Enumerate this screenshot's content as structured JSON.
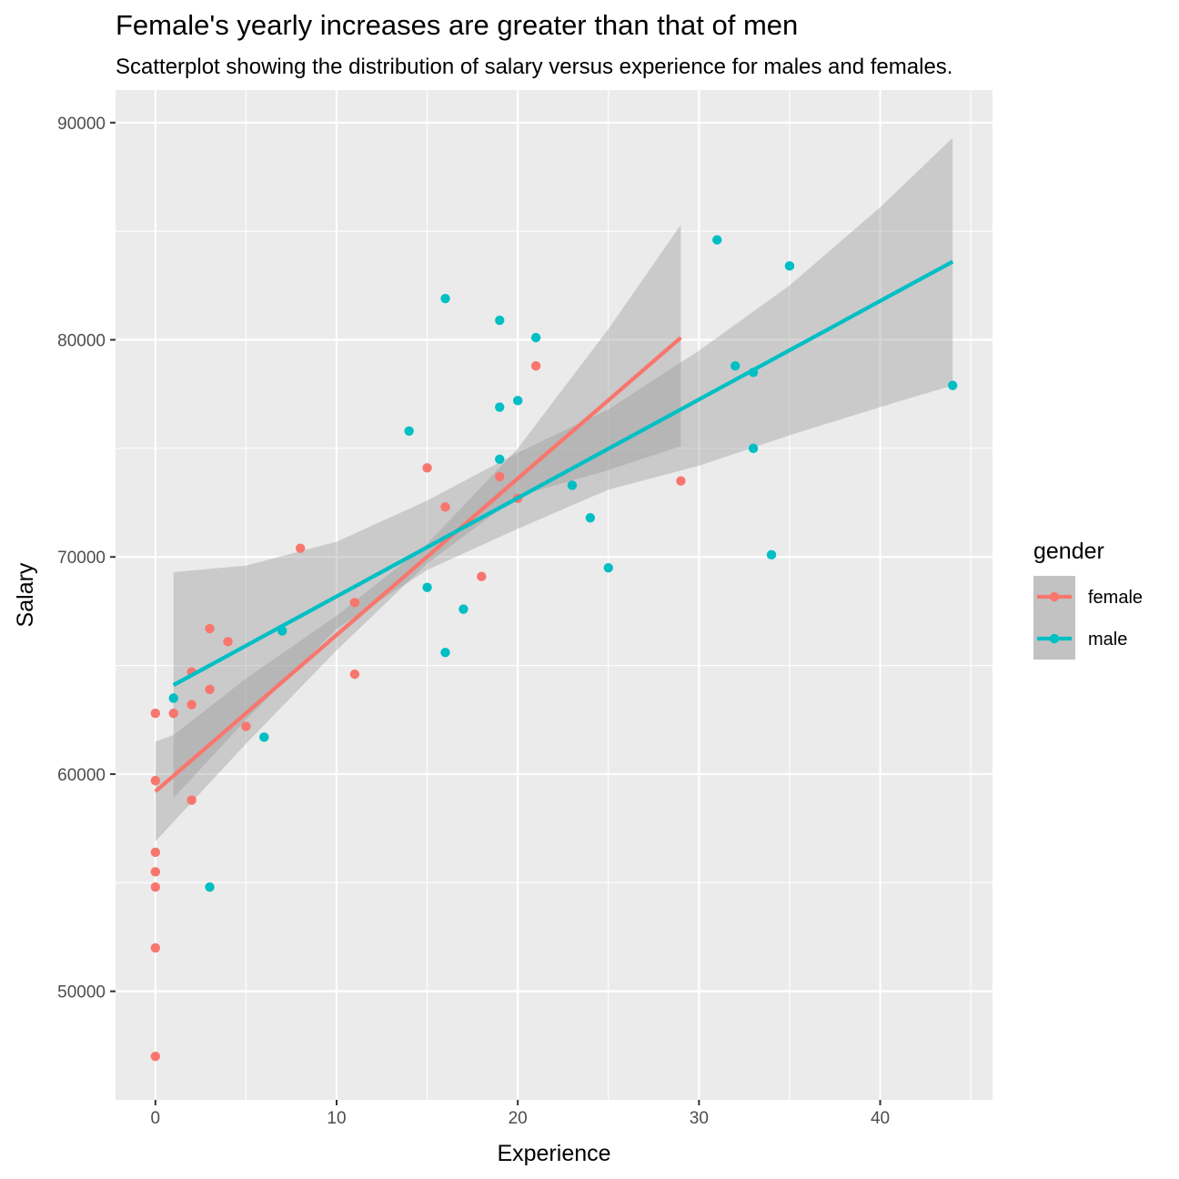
{
  "chart_data": {
    "type": "scatter",
    "title": "Female's yearly increases are greater than that of men",
    "subtitle": "Scatterplot showing the distribution of salary versus experience for males and females.",
    "xlabel": "Experience",
    "ylabel": "Salary",
    "xlim": [
      -2.2,
      46.2
    ],
    "ylim": [
      45000,
      91500
    ],
    "x_ticks": [
      0,
      10,
      20,
      30,
      40
    ],
    "y_ticks": [
      50000,
      60000,
      70000,
      80000,
      90000
    ],
    "x_tick_labels": [
      "0",
      "10",
      "20",
      "30",
      "40"
    ],
    "y_tick_labels": [
      "50000",
      "60000",
      "70000",
      "80000",
      "90000"
    ],
    "grid": true,
    "legend": {
      "title": "gender",
      "position": "right",
      "entries": [
        "female",
        "male"
      ]
    },
    "colors": {
      "female": "#F8766D",
      "male": "#00BFC4",
      "panel": "#EBEBEB",
      "ribbon": "#999999"
    },
    "series": [
      {
        "name": "female",
        "points": [
          [
            0,
            47000
          ],
          [
            0,
            52000
          ],
          [
            0,
            54800
          ],
          [
            0,
            55500
          ],
          [
            0,
            56400
          ],
          [
            0,
            59700
          ],
          [
            0,
            62800
          ],
          [
            1,
            62800
          ],
          [
            2,
            58800
          ],
          [
            2,
            63200
          ],
          [
            2,
            64700
          ],
          [
            3,
            63900
          ],
          [
            3,
            66700
          ],
          [
            4,
            66100
          ],
          [
            5,
            62200
          ],
          [
            8,
            70400
          ],
          [
            11,
            64600
          ],
          [
            11,
            67900
          ],
          [
            15,
            74100
          ],
          [
            16,
            72300
          ],
          [
            18,
            69100
          ],
          [
            19,
            73700
          ],
          [
            20,
            72700
          ],
          [
            21,
            78800
          ],
          [
            29,
            73500
          ]
        ],
        "fit": {
          "x": [
            0,
            29
          ],
          "y": [
            59200,
            80100
          ]
        },
        "ribbon": {
          "x": [
            0,
            1,
            5,
            10,
            15,
            20,
            25,
            29
          ],
          "lower": [
            56900,
            57800,
            61400,
            65700,
            69700,
            72800,
            74000,
            75100
          ],
          "upper": [
            61500,
            61800,
            64400,
            67300,
            70600,
            75000,
            80500,
            85300
          ]
        }
      },
      {
        "name": "male",
        "points": [
          [
            1,
            63500
          ],
          [
            3,
            54800
          ],
          [
            6,
            61700
          ],
          [
            7,
            66600
          ],
          [
            14,
            75800
          ],
          [
            15,
            68600
          ],
          [
            16,
            65600
          ],
          [
            16,
            81900
          ],
          [
            17,
            67600
          ],
          [
            19,
            74500
          ],
          [
            19,
            76900
          ],
          [
            19,
            80900
          ],
          [
            20,
            77200
          ],
          [
            21,
            80100
          ],
          [
            23,
            73300
          ],
          [
            24,
            71800
          ],
          [
            25,
            69500
          ],
          [
            31,
            84600
          ],
          [
            32,
            78800
          ],
          [
            33,
            75000
          ],
          [
            33,
            78500
          ],
          [
            34,
            70100
          ],
          [
            35,
            83400
          ],
          [
            44,
            77900
          ]
        ],
        "fit": {
          "x": [
            1,
            44
          ],
          "y": [
            64100,
            83600
          ]
        },
        "ribbon": {
          "x": [
            1,
            5,
            10,
            15,
            20,
            25,
            30,
            35,
            40,
            44
          ],
          "lower": [
            58900,
            62500,
            66700,
            69400,
            71300,
            73100,
            74200,
            75600,
            76900,
            77900
          ],
          "upper": [
            69300,
            69600,
            70700,
            72600,
            74800,
            76800,
            79500,
            82500,
            86100,
            89300
          ]
        }
      }
    ]
  }
}
